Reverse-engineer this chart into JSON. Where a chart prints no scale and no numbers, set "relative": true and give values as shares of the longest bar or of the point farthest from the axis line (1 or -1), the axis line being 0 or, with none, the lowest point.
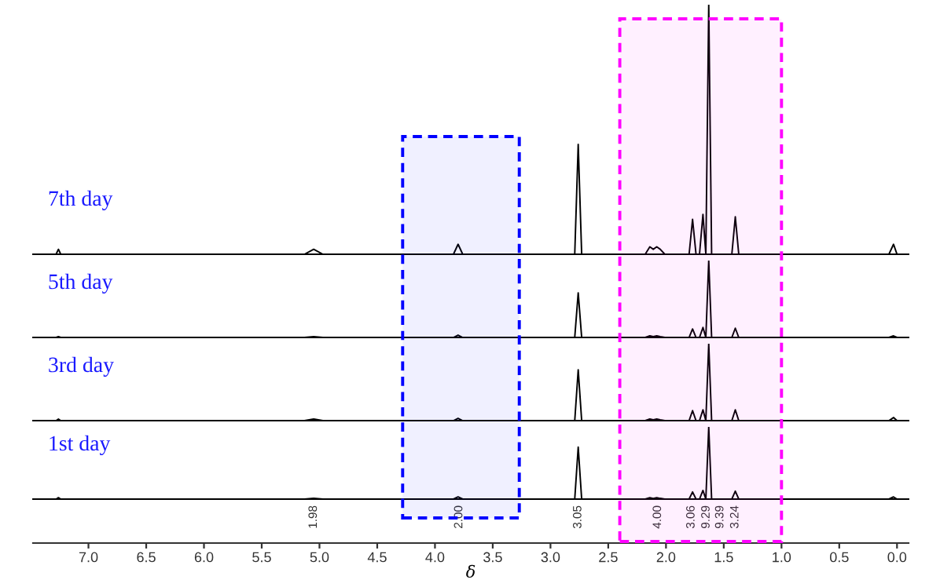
{
  "chart_data": [
    {
      "type": "line",
      "title": "7th day",
      "relative": true,
      "xlim": [
        7.48,
        -0.1
      ],
      "tick_labels": false,
      "x": [
        7.48,
        7.28,
        7.26,
        7.24,
        5.13,
        5.05,
        4.97,
        3.84,
        3.8,
        3.76,
        2.79,
        2.76,
        2.73,
        2.18,
        2.14,
        2.11,
        2.08,
        2.05,
        2.01,
        1.8,
        1.77,
        1.74,
        1.71,
        1.68,
        1.655,
        1.63,
        1.605,
        1.43,
        1.4,
        1.37,
        0.07,
        0.03,
        0.0,
        -0.1
      ],
      "series": [
        {
          "color": "#000000",
          "values": [
            0,
            0,
            0.02,
            0,
            0,
            0.02,
            0,
            0,
            0.04,
            0,
            0,
            0.44,
            0,
            0,
            0.03,
            0.02,
            0.03,
            0.02,
            0,
            0,
            0.14,
            0,
            0,
            0.16,
            0,
            1,
            0,
            0,
            0.15,
            0,
            0,
            0.04,
            0,
            0
          ]
        }
      ]
    },
    {
      "type": "line",
      "title": "5th day",
      "relative": true,
      "xlim": [
        7.48,
        -0.1
      ],
      "tick_labels": false,
      "x": [
        7.48,
        7.28,
        7.26,
        7.24,
        5.13,
        5.05,
        4.97,
        3.84,
        3.8,
        3.76,
        2.79,
        2.76,
        2.73,
        2.18,
        2.14,
        2.11,
        2.08,
        2.05,
        2.01,
        1.8,
        1.77,
        1.74,
        1.71,
        1.68,
        1.655,
        1.63,
        1.605,
        1.43,
        1.4,
        1.37,
        0.07,
        0.03,
        0.0,
        -0.1
      ],
      "series": [
        {
          "color": "#000000",
          "values": [
            0,
            0,
            0.01,
            0,
            0,
            0.01,
            0,
            0,
            0.03,
            0,
            0,
            0.58,
            0,
            0,
            0.02,
            0.01,
            0.02,
            0.01,
            0,
            0,
            0.11,
            0,
            0,
            0.13,
            0,
            1,
            0,
            0,
            0.12,
            0,
            0,
            0.02,
            0,
            0
          ]
        }
      ]
    },
    {
      "type": "line",
      "title": "3rd day",
      "relative": true,
      "xlim": [
        7.48,
        -0.1
      ],
      "tick_labels": false,
      "x": [
        7.48,
        7.28,
        7.26,
        7.24,
        5.13,
        5.05,
        4.97,
        3.84,
        3.8,
        3.76,
        2.79,
        2.76,
        2.73,
        2.18,
        2.14,
        2.11,
        2.08,
        2.05,
        2.01,
        1.8,
        1.77,
        1.74,
        1.71,
        1.68,
        1.655,
        1.63,
        1.605,
        1.43,
        1.4,
        1.37,
        0.07,
        0.03,
        0.0,
        -0.1
      ],
      "series": [
        {
          "color": "#000000",
          "values": [
            0,
            0,
            0.02,
            0,
            0,
            0.02,
            0,
            0,
            0.03,
            0,
            0,
            0.66,
            0,
            0,
            0.02,
            0.01,
            0.02,
            0.01,
            0,
            0,
            0.13,
            0,
            0,
            0.14,
            0,
            1,
            0,
            0,
            0.14,
            0,
            0,
            0.04,
            0,
            0
          ]
        }
      ]
    },
    {
      "type": "line",
      "title": "1st day",
      "relative": true,
      "xlabel": "δ",
      "xlim": [
        7.48,
        -0.1
      ],
      "xticks": [
        {
          "value": 7,
          "label": "7.0"
        },
        6.5,
        {
          "value": 6,
          "label": "6.0"
        },
        5.5,
        {
          "value": 5,
          "label": "5.0"
        },
        4.5,
        {
          "value": 4,
          "label": "4.0"
        },
        3.5,
        {
          "value": 3,
          "label": "3.0"
        },
        2.5,
        {
          "value": 2,
          "label": "2.0"
        },
        1.5,
        {
          "value": 1,
          "label": "1.0"
        },
        0.5,
        {
          "value": 0,
          "label": "0.0"
        }
      ],
      "tick_labels": "x",
      "x": [
        7.48,
        7.28,
        7.26,
        7.24,
        5.13,
        5.05,
        4.97,
        3.84,
        3.8,
        3.76,
        2.79,
        2.76,
        2.73,
        2.18,
        2.14,
        2.11,
        2.08,
        2.05,
        2.01,
        1.8,
        1.77,
        1.74,
        1.71,
        1.68,
        1.655,
        1.63,
        1.605,
        1.43,
        1.4,
        1.37,
        0.07,
        0.03,
        0.0,
        -0.1
      ],
      "series": [
        {
          "color": "#000000",
          "values": [
            0,
            0,
            0.02,
            0,
            0,
            0.01,
            0,
            0,
            0.03,
            0,
            0,
            0.72,
            0,
            0,
            0.02,
            0.01,
            0.02,
            0.01,
            0,
            0,
            0.1,
            0,
            0,
            0.12,
            0,
            1,
            0,
            0,
            0.11,
            0,
            0,
            0.03,
            0,
            0
          ]
        }
      ],
      "bands": [
        {
          "axis": "x",
          "from": 4.28,
          "to": 3.27,
          "color": "#0000ff"
        },
        {
          "axis": "x",
          "from": 2.4,
          "to": 1.0,
          "color": "#ff00ff"
        }
      ],
      "annotations": [
        "1.98",
        "2.00",
        "3.05",
        "4.00",
        "3.06",
        "9.29",
        "9.39",
        "3.24"
      ]
    }
  ]
}
